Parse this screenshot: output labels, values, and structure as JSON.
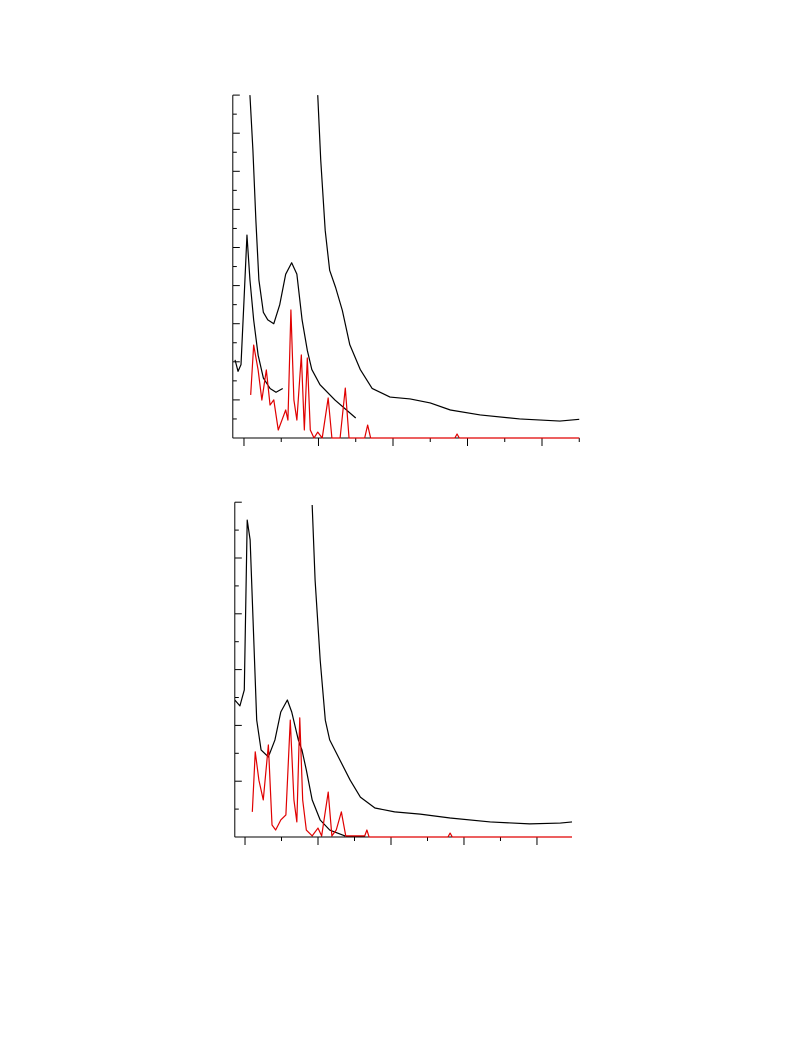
{
  "chart_data": [
    {
      "type": "line",
      "xlim": [
        -0.15,
        4.5
      ],
      "xticks": [
        0,
        0.5,
        1,
        1.5,
        2,
        2.5,
        3,
        3.5,
        4,
        4.5
      ],
      "ylim": [
        0,
        18
      ],
      "yticks": [
        0,
        1,
        2,
        3,
        4,
        5,
        6,
        7,
        8,
        9,
        10,
        11,
        12,
        13,
        14,
        15,
        16,
        17,
        18
      ],
      "series": [
        {
          "color": "#000000",
          "x": [
            0.08,
            0.12,
            0.16,
            0.2,
            0.26,
            0.32,
            0.4,
            0.48,
            0.56,
            0.64,
            0.71,
            0.78,
            0.85,
            0.91,
            1.02,
            1.22,
            1.5
          ],
          "values": [
            18.0,
            15.1,
            11.4,
            8.3,
            6.6,
            6.2,
            6.0,
            7.0,
            8.6,
            9.2,
            8.6,
            6.2,
            4.6,
            3.6,
            2.8,
            2.0,
            1.05
          ]
        },
        {
          "color": "#000000",
          "x": [
            0.99,
            1.03,
            1.09,
            1.15,
            1.23,
            1.32,
            1.42,
            1.56,
            1.72,
            1.96,
            2.23,
            2.5,
            2.77,
            3.17,
            3.7,
            4.24,
            4.5
          ],
          "values": [
            18.0,
            14.6,
            10.9,
            8.8,
            7.9,
            6.7,
            4.9,
            3.6,
            2.6,
            2.15,
            2.05,
            1.84,
            1.47,
            1.21,
            1.0,
            0.89,
            0.98
          ]
        },
        {
          "color": "#000000",
          "x": [
            -0.12,
            -0.08,
            -0.04,
            0,
            0.04,
            0.08,
            0.13,
            0.19,
            0.26,
            0.35,
            0.43,
            0.52
          ],
          "values": [
            4.1,
            3.5,
            3.85,
            7.2,
            10.65,
            8.3,
            6.2,
            4.35,
            3.15,
            2.6,
            2.4,
            2.6
          ]
        },
        {
          "color": "#e00000",
          "x": [
            0.09,
            0.13,
            0.19,
            0.24,
            0.3,
            0.35,
            0.4,
            0.46,
            0.51,
            0.56,
            0.59,
            0.63,
            0.67,
            0.71,
            0.77,
            0.81,
            0.85,
            0.89,
            0.94,
            0.99,
            1.05,
            1.13,
            1.18,
            1.29,
            1.36,
            1.41,
            1.62,
            1.66,
            1.7,
            2.83,
            2.86,
            2.89,
            4.5
          ],
          "values": [
            2.26,
            4.88,
            3.57,
            1.99,
            3.57,
            1.73,
            2.0,
            0.42,
            0.94,
            1.47,
            0.94,
            6.72,
            2.0,
            0.94,
            4.36,
            0.42,
            4.2,
            0.42,
            0,
            0.31,
            0,
            2.1,
            0,
            0,
            2.62,
            0,
            0,
            0.68,
            0,
            0,
            0.21,
            0,
            0
          ]
        }
      ]
    },
    {
      "type": "line",
      "xlim": [
        -0.14,
        4.48
      ],
      "xticks": [
        0,
        0.5,
        1,
        1.5,
        2,
        2.5,
        3,
        3.5,
        4
      ],
      "ylim": [
        0,
        12
      ],
      "yticks": [
        0,
        1,
        2,
        3,
        4,
        5,
        6,
        7,
        8,
        9,
        10,
        11,
        12
      ],
      "series": [
        {
          "color": "#000000",
          "x": [
            -0.14,
            -0.07,
            -0.01,
            0.03,
            0.07,
            0.11,
            0.16,
            0.22,
            0.32,
            0.41,
            0.49,
            0.58,
            0.64,
            0.73,
            0.78,
            0.84,
            0.92,
            1.03,
            1.16,
            1.37
          ],
          "values": [
            4.91,
            4.7,
            5.27,
            11.36,
            10.65,
            7.78,
            4.19,
            3.12,
            2.87,
            3.48,
            4.48,
            4.91,
            4.48,
            3.48,
            3.12,
            2.4,
            1.33,
            0.61,
            0.25,
            0.04
          ]
        },
        {
          "color": "#000000",
          "x": [
            0.92,
            0.96,
            1.03,
            1.1,
            1.16,
            1.3,
            1.44,
            1.58,
            1.78,
            2.05,
            2.4,
            2.81,
            3.36,
            3.9,
            4.32,
            4.48
          ],
          "values": [
            11.9,
            9.21,
            6.34,
            4.19,
            3.48,
            2.76,
            2.04,
            1.43,
            1.04,
            0.9,
            0.82,
            0.68,
            0.54,
            0.47,
            0.5,
            0.54
          ]
        },
        {
          "color": "#e00000",
          "x": [
            0.1,
            0.14,
            0.19,
            0.25,
            0.32,
            0.37,
            0.42,
            0.49,
            0.56,
            0.62,
            0.67,
            0.71,
            0.75,
            0.79,
            0.84,
            0.92,
            1.0,
            1.05,
            1.14,
            1.19,
            1.25,
            1.32,
            1.38,
            1.64,
            1.67,
            1.7,
            2.78,
            2.81,
            2.84,
            4.48
          ],
          "values": [
            0.9,
            3.05,
            2.04,
            1.33,
            3.3,
            0.43,
            0.25,
            0.61,
            0.79,
            4.19,
            1.33,
            0.54,
            4.27,
            1.33,
            0.25,
            0.04,
            0.32,
            0.04,
            1.61,
            0.04,
            0.25,
            0.9,
            0.04,
            0.04,
            0.25,
            0,
            0,
            0.14,
            0,
            0
          ]
        }
      ]
    }
  ]
}
